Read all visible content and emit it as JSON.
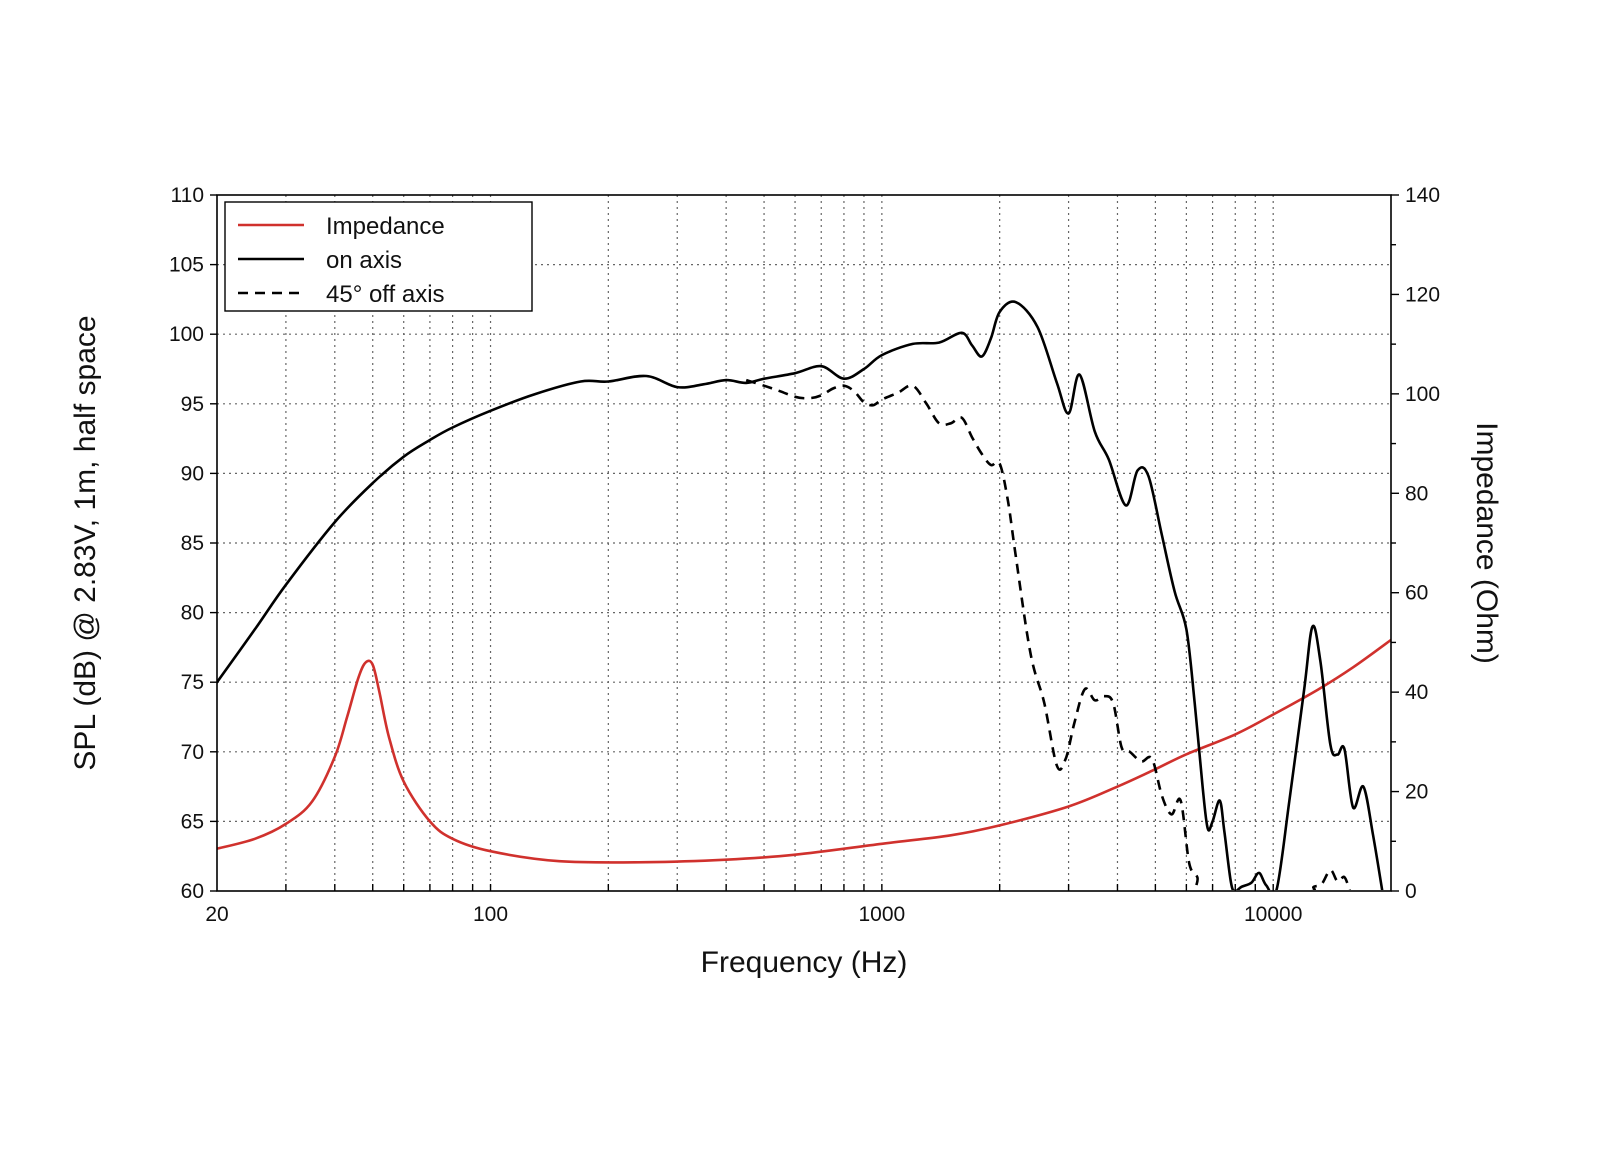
{
  "chart_data": {
    "type": "line",
    "xlabel": "Frequency (Hz)",
    "ylabel": "SPL (dB) @ 2.83V, 1m, half space",
    "y2label": "Impedance (Ohm)",
    "x_scale": "log",
    "xlim": [
      20,
      20000
    ],
    "ylim": [
      60,
      110
    ],
    "y2lim": [
      0,
      140
    ],
    "xticks": [
      20,
      100,
      1000,
      10000
    ],
    "xtick_labels": [
      "20",
      "100",
      "1000",
      "10000"
    ],
    "yticks": [
      60,
      65,
      70,
      75,
      80,
      85,
      90,
      95,
      100,
      105,
      110
    ],
    "ytick_labels": [
      "60",
      "65",
      "70",
      "75",
      "80",
      "85",
      "90",
      "95",
      "100",
      "105",
      "110"
    ],
    "y2ticks": [
      0,
      20,
      40,
      60,
      80,
      100,
      120,
      140
    ],
    "y2tick_labels": [
      "0",
      "20",
      "40",
      "60",
      "80",
      "100",
      "120",
      "140"
    ],
    "grid": true,
    "legend_position": "top-left",
    "series": [
      {
        "name": "Impedance",
        "axis": "right",
        "color": "#d0312d",
        "dash": "solid",
        "x": [
          20,
          25,
          30,
          35,
          40,
          43,
          46,
          48,
          50,
          52,
          55,
          60,
          70,
          80,
          100,
          150,
          250,
          400,
          600,
          1000,
          1500,
          2000,
          3000,
          4000,
          5000,
          6000,
          8000,
          10000,
          13000,
          16000,
          20000
        ],
        "y": [
          8.5,
          10.5,
          13.5,
          18,
          27,
          35,
          43,
          46,
          45.5,
          40,
          31,
          22,
          14,
          10.5,
          8,
          6,
          5.8,
          6.3,
          7.3,
          9.5,
          11.2,
          13.2,
          17,
          21,
          24.5,
          27.5,
          31.5,
          35.5,
          40.5,
          45,
          50.5
        ]
      },
      {
        "name": "on axis",
        "axis": "left",
        "color": "#000000",
        "dash": "solid",
        "x": [
          20,
          25,
          30,
          40,
          50,
          60,
          70,
          80,
          100,
          130,
          170,
          200,
          250,
          300,
          350,
          400,
          450,
          500,
          600,
          700,
          800,
          900,
          1000,
          1200,
          1400,
          1600,
          1700,
          1800,
          1900,
          2000,
          2200,
          2500,
          2800,
          3000,
          3200,
          3500,
          3800,
          4200,
          4500,
          4800,
          5200,
          5600,
          6000,
          6300,
          6600,
          6800,
          7000,
          7300,
          7500,
          7800,
          8000,
          8300,
          8800,
          9200,
          9600,
          10200,
          11000,
          12000,
          12600,
          13200,
          14000,
          14600,
          15200,
          16000,
          17000,
          18000,
          19000
        ],
        "y": [
          75,
          78.8,
          82,
          86.5,
          89.3,
          91.2,
          92.4,
          93.3,
          94.5,
          95.7,
          96.6,
          96.6,
          97,
          96.2,
          96.4,
          96.7,
          96.5,
          96.8,
          97.2,
          97.7,
          96.8,
          97.5,
          98.5,
          99.3,
          99.4,
          100.1,
          99.2,
          98.4,
          99.7,
          101.6,
          102.3,
          100.5,
          96.5,
          94.3,
          97.1,
          93,
          91,
          87.7,
          90.2,
          89.8,
          85.5,
          81.5,
          78.8,
          73.5,
          67.5,
          64.5,
          65,
          66.5,
          64.3,
          60.6,
          60,
          60.3,
          60.6,
          61.3,
          60.4,
          60.1,
          66.5,
          74.5,
          79,
          76.5,
          70.5,
          69.8,
          70.2,
          66,
          67.5,
          64,
          60
        ]
      },
      {
        "name": "45° off axis",
        "axis": "left",
        "color": "#000000",
        "dash": "dashed",
        "x": [
          450,
          500,
          550,
          600,
          650,
          700,
          750,
          800,
          850,
          900,
          950,
          1000,
          1100,
          1200,
          1300,
          1400,
          1500,
          1600,
          1700,
          1800,
          1900,
          2000,
          2100,
          2200,
          2400,
          2600,
          2800,
          2950,
          3100,
          3300,
          3500,
          3700,
          3900,
          4100,
          4300,
          4600,
          4900,
          5200,
          5500,
          5800,
          6100,
          6400,
          6700,
          12000,
          12700,
          13300,
          14000,
          14600,
          15200,
          15700
        ],
        "y": [
          96.7,
          96.3,
          95.9,
          95.5,
          95.4,
          95.6,
          96.1,
          96.3,
          95.9,
          95.1,
          94.9,
          95.3,
          95.8,
          96.3,
          95,
          93.6,
          93.6,
          94,
          92.6,
          91.4,
          90.6,
          90.7,
          88,
          84,
          77,
          73.5,
          69,
          69.5,
          72,
          74.5,
          73.7,
          74,
          73.5,
          70.3,
          70,
          69.3,
          69.5,
          66.8,
          65.5,
          66.5,
          62,
          61,
          59.5,
          59.9,
          60.3,
          60.5,
          61.5,
          60.7,
          61,
          60
        ]
      }
    ]
  }
}
